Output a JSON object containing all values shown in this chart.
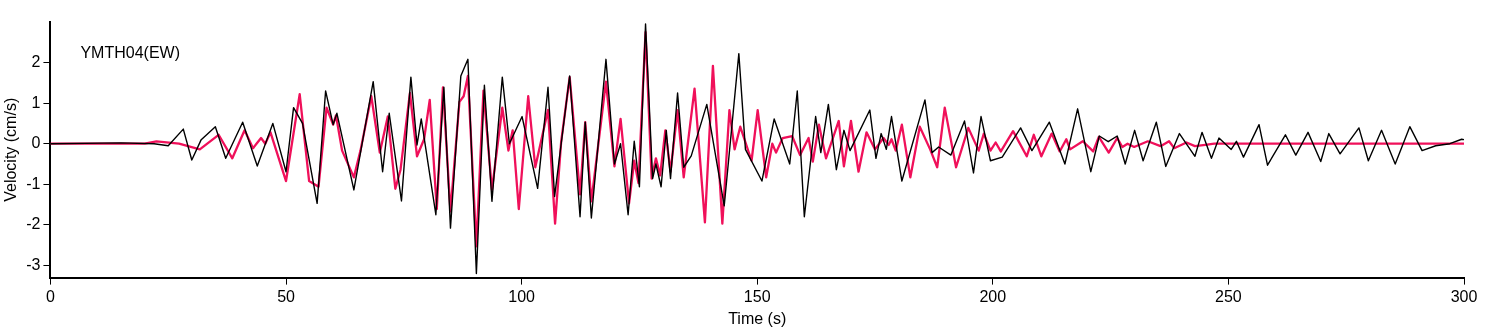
{
  "chart_data": {
    "type": "line",
    "xlabel": "Time (s)",
    "ylabel": "Velocity (cm/s)",
    "annotations": [
      "YMTH04(EW)"
    ],
    "xlim": [
      0,
      300
    ],
    "xticks": [
      0,
      50,
      100,
      150,
      200,
      250,
      300
    ],
    "ylim": [
      -3.3,
      3
    ],
    "yticks": [
      -3,
      -2,
      -1,
      0,
      1,
      2
    ],
    "grid": false,
    "legend": false,
    "marker": "none",
    "line_style": "solid",
    "series": [
      {
        "color": "#000000",
        "x": [
          0,
          15,
          22,
          25,
          28.2,
          30,
          32,
          35,
          37.2,
          40.8,
          43.9,
          47.2,
          50,
          51.6,
          53.5,
          56.6,
          58.4,
          60,
          60.8,
          64.4,
          68.5,
          70.5,
          71.9,
          74.5,
          76.5,
          77.8,
          78.7,
          81.8,
          83.5,
          84.9,
          87.1,
          88.6,
          90.4,
          92.1,
          93.7,
          95.9,
          97.4,
          100.1,
          103.4,
          105.6,
          107,
          110.2,
          112.4,
          113.5,
          114.8,
          117.9,
          119.7,
          121,
          122.6,
          123.9,
          125,
          126.3,
          127.8,
          128.5,
          129.6,
          130.7,
          131.6,
          133.1,
          134.4,
          136,
          139.3,
          143,
          146.1,
          147.5,
          151,
          153.6,
          156.9,
          158.5,
          160,
          162.4,
          163.5,
          165.1,
          166.8,
          168.4,
          169.7,
          173.9,
          175.2,
          176.3,
          177.4,
          178.5,
          180.7,
          185.6,
          187.1,
          188.5,
          191.1,
          194,
          195.9,
          197.5,
          199.5,
          202,
          205.9,
          208.3,
          212,
          215.3,
          218,
          220.8,
          222.6,
          224.5,
          226.4,
          228.1,
          230.1,
          231.9,
          234.7,
          236.7,
          239.6,
          242.9,
          244.4,
          246.4,
          248,
          250.6,
          251.7,
          253.2,
          256.5,
          258.3,
          262.1,
          264.3,
          266.9,
          269.6,
          271.3,
          273.7,
          277.7,
          279.7,
          282.5,
          285.4,
          288.5,
          291.1,
          294,
          297,
          299.5,
          300
        ],
        "values": [
          0,
          0.02,
          0,
          -0.05,
          0.36,
          -0.4,
          0.1,
          0.42,
          -0.36,
          0.53,
          -0.55,
          0.5,
          -0.69,
          0.89,
          0.5,
          -1.47,
          1.3,
          0.47,
          0.75,
          -1.14,
          1.53,
          -0.69,
          0.75,
          -1.41,
          1.64,
          -0.03,
          0.61,
          -1.75,
          1.39,
          -2.08,
          1.67,
          2.08,
          -3.2,
          1.44,
          -1.42,
          1.64,
          0,
          0.67,
          -1.1,
          1.39,
          -1.3,
          1.67,
          -1.8,
          0.53,
          -1.83,
          2.08,
          -0.5,
          0,
          -1.75,
          0.06,
          -1.06,
          2.95,
          -0.86,
          -0.5,
          -1.06,
          0.33,
          -0.86,
          1.25,
          -0.58,
          -0.3,
          0.97,
          -1.53,
          2.22,
          -0.14,
          -0.92,
          0.61,
          -0.5,
          1.3,
          -1.8,
          0.67,
          -0.22,
          0.97,
          -0.64,
          0.33,
          -0.17,
          0.83,
          -0.36,
          0.25,
          -0.14,
          0.67,
          -0.92,
          1.08,
          -0.22,
          -0.08,
          -0.28,
          0.56,
          -0.72,
          0.67,
          -0.42,
          -0.33,
          0.39,
          -0.17,
          0.53,
          -0.5,
          0.86,
          -0.69,
          0.19,
          0.05,
          0.19,
          -0.5,
          0.33,
          -0.42,
          0.53,
          -0.56,
          0.25,
          -0.31,
          0.28,
          -0.36,
          0.14,
          -0.14,
          0.06,
          -0.33,
          0.47,
          -0.53,
          0.22,
          -0.28,
          0.28,
          -0.44,
          0.25,
          -0.25,
          0.39,
          -0.42,
          0.33,
          -0.5,
          0.42,
          -0.17,
          -0.05,
          0,
          0.11,
          0.1
        ]
      },
      {
        "color": "#f0105a",
        "x": [
          0,
          20,
          22.5,
          27.3,
          31.7,
          35.7,
          38.6,
          41.2,
          43,
          44.7,
          45.6,
          46.7,
          50,
          52.9,
          54.9,
          56.9,
          58.6,
          60,
          60.6,
          61.9,
          64.4,
          65.8,
          68.1,
          69.9,
          71.6,
          73.2,
          74.3,
          76.3,
          77.8,
          79.3,
          80.5,
          82,
          83.3,
          84.9,
          86.8,
          87.7,
          88.6,
          90.4,
          91.9,
          93.7,
          95.9,
          97.2,
          98.1,
          99.4,
          101.4,
          102.9,
          105.6,
          107.1,
          108.4,
          110.2,
          112.4,
          113.5,
          114.8,
          117.9,
          119.7,
          121,
          122.8,
          123.9,
          124.8,
          126.3,
          127.6,
          128.5,
          129.4,
          130.5,
          131.6,
          133.1,
          134.4,
          136.7,
          138.9,
          140.6,
          142.6,
          144.1,
          145.2,
          146.4,
          148.8,
          150.1,
          151.9,
          153.2,
          154,
          155.4,
          157.4,
          159.1,
          160.9,
          161.8,
          163.1,
          164.6,
          167.3,
          168.4,
          169.9,
          171.5,
          173.2,
          175,
          176.8,
          177.9,
          178.5,
          179.4,
          180.7,
          182.5,
          184.5,
          186.7,
          188.2,
          189.8,
          192.2,
          194.8,
          197,
          198.1,
          199.5,
          200.6,
          201.7,
          204.3,
          207.2,
          208.7,
          210.3,
          212.5,
          214.2,
          215.6,
          216.4,
          219.1,
          221.3,
          222.5,
          224.6,
          226.4,
          227.5,
          228.6,
          230,
          232.9,
          235.6,
          237.4,
          238.5,
          241.1,
          242.9,
          245.1,
          247,
          300
        ],
        "values": [
          0,
          0,
          0.06,
          0,
          -0.14,
          0.22,
          -0.36,
          0.33,
          -0.11,
          0.14,
          0,
          0.28,
          -0.92,
          1.22,
          -0.92,
          -1.06,
          0.89,
          0.47,
          0.7,
          -0.17,
          -0.83,
          -0.17,
          1.17,
          -0.22,
          0.67,
          -1.11,
          -0.64,
          1.25,
          -0.31,
          0.11,
          1.08,
          -1.61,
          1.39,
          -1.67,
          1.03,
          1.17,
          1.67,
          -2.53,
          1.31,
          -1.14,
          0.89,
          -0.17,
          0.33,
          -1.61,
          1.17,
          -0.58,
          0.83,
          -1.97,
          0.06,
          1.64,
          -1.25,
          0.53,
          -1.42,
          1.53,
          -0.56,
          0.61,
          -1.47,
          -0.42,
          -0.97,
          2.75,
          -0.86,
          -0.36,
          -0.78,
          0.33,
          -0.69,
          0.83,
          -0.83,
          1.36,
          -1.94,
          1.92,
          -1.97,
          0.83,
          -0.14,
          0.42,
          -0.42,
          0.83,
          -0.83,
          0,
          -0.22,
          0.14,
          0.19,
          -0.28,
          0.14,
          -0.44,
          0.47,
          -0.36,
          0.56,
          -0.56,
          0.56,
          -0.69,
          0.28,
          -0.14,
          0.14,
          -0.03,
          0.11,
          -0.17,
          0.47,
          -0.83,
          0.42,
          -0.14,
          -0.58,
          0.89,
          -0.58,
          0.39,
          -0.17,
          0.25,
          -0.17,
          0.03,
          -0.19,
          0.31,
          -0.31,
          0.22,
          -0.31,
          0.25,
          -0.19,
          0.11,
          -0.14,
          0.06,
          -0.19,
          0.17,
          -0.22,
          0.14,
          -0.08,
          0,
          -0.08,
          0.06,
          -0.06,
          0.06,
          -0.11,
          0.03,
          -0.06,
          -0.03,
          0,
          0
        ]
      }
    ]
  }
}
